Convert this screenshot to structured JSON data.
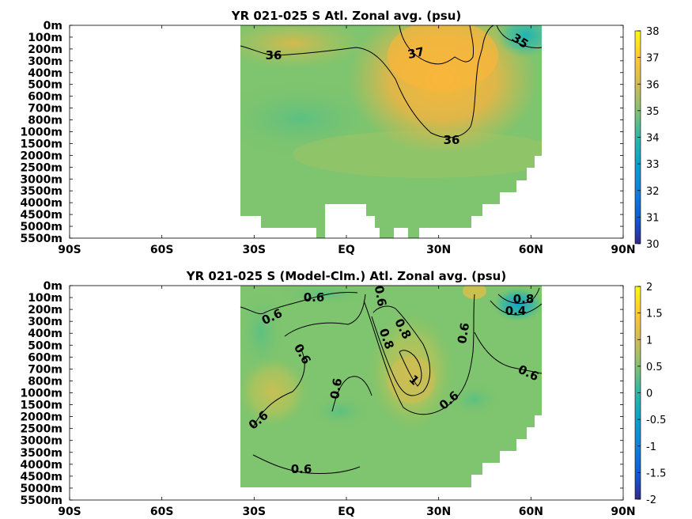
{
  "chart_data": [
    {
      "type": "heatmap",
      "title": "YR 021-025 S Atl. Zonal avg. (psu)",
      "xlabel": "",
      "ylabel": "",
      "x_ticks": [
        "90S",
        "60S",
        "30S",
        "EQ",
        "30N",
        "60N",
        "90N"
      ],
      "xlim": [
        -90,
        90
      ],
      "y_ticks": [
        "0m",
        "100m",
        "200m",
        "300m",
        "400m",
        "500m",
        "600m",
        "700m",
        "800m",
        "1000m",
        "1500m",
        "2000m",
        "2500m",
        "3000m",
        "3500m",
        "4000m",
        "4500m",
        "5000m",
        "5500m"
      ],
      "colorbar": {
        "min": 30,
        "max": 38,
        "ticks": [
          "38",
          "37",
          "36",
          "35",
          "34",
          "33",
          "32",
          "31",
          "30"
        ]
      },
      "data_extent_lat": [
        -35,
        65
      ],
      "field_summary": {
        "background": 35.3,
        "surface_subtropical_max_near_25N": 37.3,
        "subpolar_surface_min_near_60N": 34.0,
        "deep_value": 34.9
      },
      "contour_labels": [
        "36",
        "37",
        "35",
        "36"
      ]
    },
    {
      "type": "heatmap",
      "title": "YR 021-025 S (Model-Clm.) Atl. Zonal avg. (psu)",
      "xlabel": "",
      "ylabel": "",
      "x_ticks": [
        "90S",
        "60S",
        "30S",
        "EQ",
        "30N",
        "60N",
        "90N"
      ],
      "xlim": [
        -90,
        90
      ],
      "y_ticks": [
        "0m",
        "100m",
        "200m",
        "300m",
        "400m",
        "500m",
        "600m",
        "700m",
        "800m",
        "1000m",
        "1500m",
        "2000m",
        "2500m",
        "3000m",
        "3500m",
        "4000m",
        "4500m",
        "5000m",
        "5500m"
      ],
      "colorbar": {
        "min": -2,
        "max": 2,
        "ticks": [
          "2",
          "1.5",
          "1",
          "0.5",
          "0",
          "-0.5",
          "-1",
          "-1.5",
          "-2"
        ]
      },
      "data_extent_lat": [
        -35,
        65
      ],
      "field_summary": {
        "background": 0.6,
        "max_near_20N_800m": 1.1,
        "subpolar_min_near_60N": -0.2
      },
      "contour_labels": [
        "0.6",
        "0.6",
        "0.6",
        "0.6",
        "0.6",
        "0.6",
        "0.6",
        "0.8",
        "0.8",
        "1",
        "0.6",
        "0.6",
        "0.8",
        "0.4",
        "0.6"
      ]
    }
  ]
}
